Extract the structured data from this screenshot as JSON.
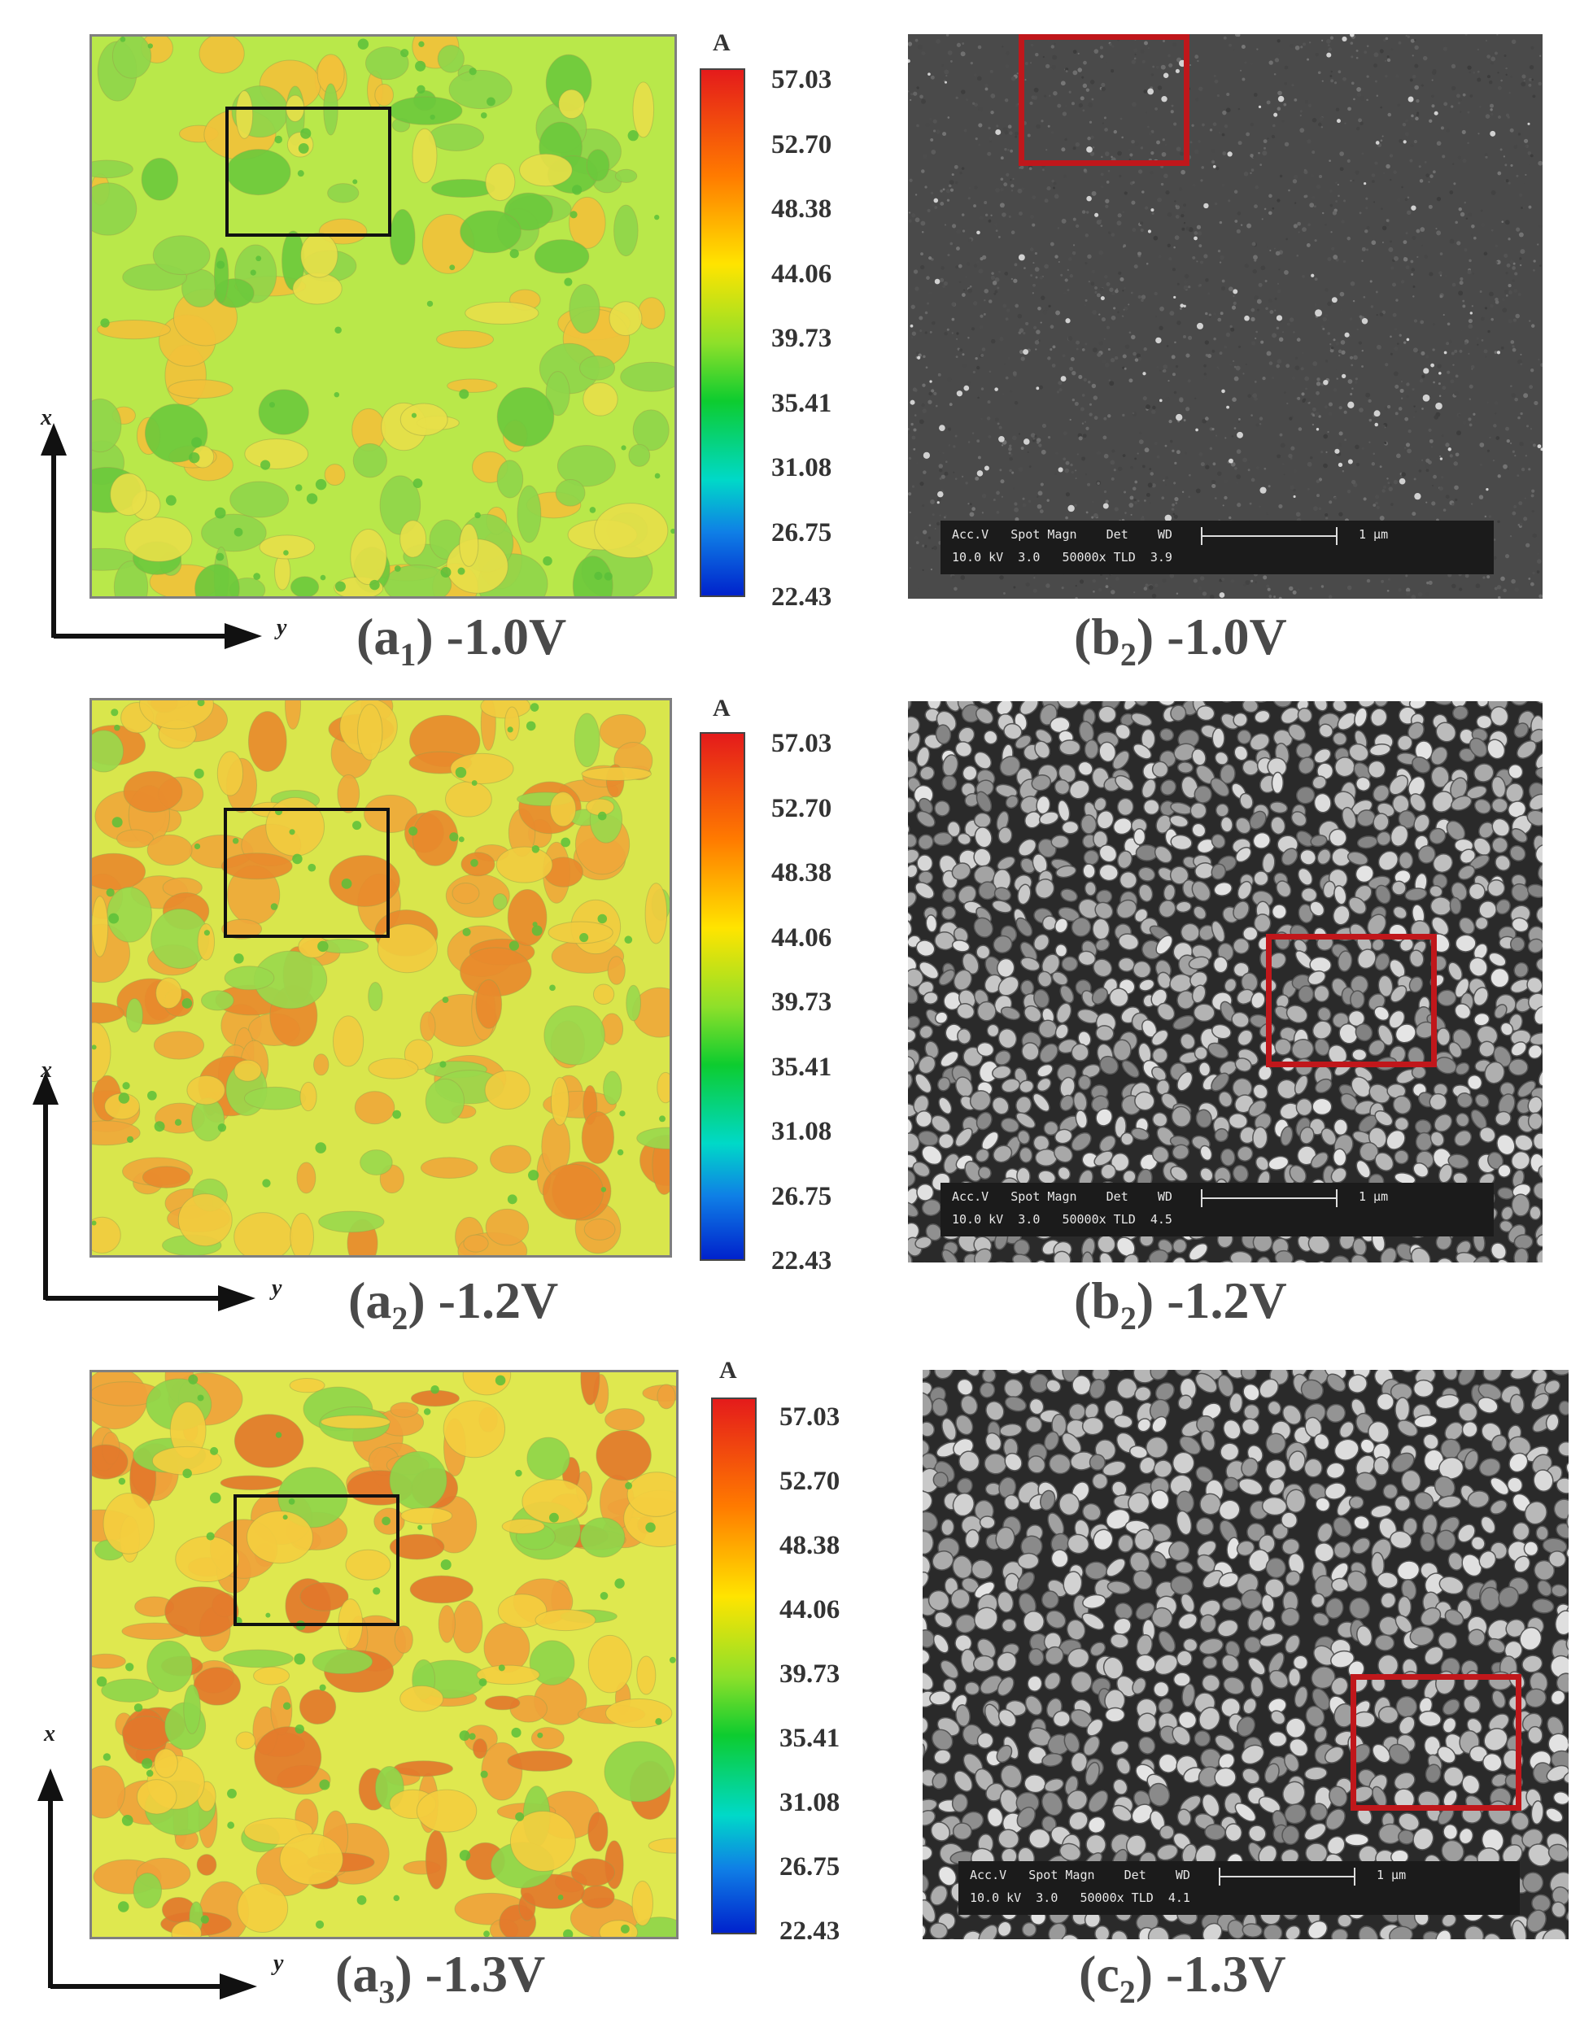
{
  "colorbar": {
    "unit": "A",
    "ticks": [
      "57.03",
      "52.70",
      "48.38",
      "44.06",
      "39.73",
      "35.41",
      "31.08",
      "26.75",
      "22.43"
    ]
  },
  "axes": {
    "x": "x",
    "y": "y"
  },
  "sem_info": {
    "headers": "Acc.V   Spot Magn    Det    WD",
    "scale": "1 μm"
  },
  "rows": [
    {
      "map_caption": {
        "letter": "a",
        "sub": "1",
        "voltage": "-1.0V"
      },
      "sem_caption": {
        "letter": "b",
        "sub": "2",
        "voltage": "-1.0V"
      },
      "sem_values": "10.0 kV  3.0   50000x TLD  3.9",
      "map_level": "low",
      "sem_texture": "fine-grain"
    },
    {
      "map_caption": {
        "letter": "a",
        "sub": "2",
        "voltage": "-1.2V"
      },
      "sem_caption": {
        "letter": "b",
        "sub": "2",
        "voltage": "-1.2V"
      },
      "sem_values": "10.0 kV  3.0   50000x TLD  4.5",
      "map_level": "medium",
      "sem_texture": "nodular-grains"
    },
    {
      "map_caption": {
        "letter": "a",
        "sub": "3",
        "voltage": "-1.3V"
      },
      "sem_caption": {
        "letter": "c",
        "sub": "2",
        "voltage": "-1.3V"
      },
      "sem_values": "10.0 kV  3.0   50000x TLD  4.1",
      "map_level": "high",
      "sem_texture": "coarse-grains"
    }
  ]
}
